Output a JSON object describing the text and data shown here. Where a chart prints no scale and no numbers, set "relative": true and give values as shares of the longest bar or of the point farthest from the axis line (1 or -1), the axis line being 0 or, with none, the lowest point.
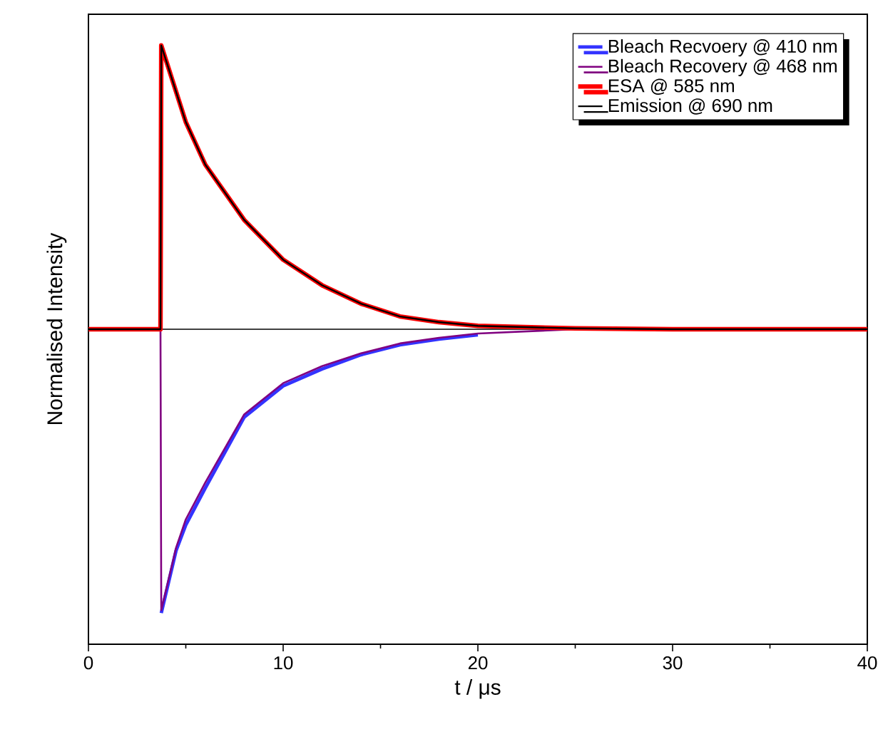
{
  "chart_data": {
    "type": "line",
    "xlabel": "t / μs",
    "ylabel": "Normalised Intensity",
    "relative": true,
    "xlim": [
      0,
      40
    ],
    "xticks": [
      0,
      10,
      20,
      30,
      40
    ],
    "tick_labels": "x",
    "legend": "top right",
    "marker": "none",
    "line_style": "solid",
    "series": [
      {
        "name": "Bleach Recvoery @ 410 nm",
        "color": "#3333ff",
        "x": [
          3.74,
          4.5,
          5,
          6,
          8,
          10,
          12,
          14,
          16,
          18,
          20
        ],
        "values": [
          -1.0,
          -0.78,
          -0.69,
          -0.56,
          -0.31,
          -0.2,
          -0.14,
          -0.09,
          -0.055,
          -0.035,
          -0.02
        ]
      },
      {
        "name": "Bleach Recovery @ 468 nm",
        "color": "#800080",
        "x": [
          0,
          3.7,
          3.74,
          4.5,
          5,
          6,
          8,
          10,
          12,
          14,
          16,
          18,
          20,
          25,
          30,
          40
        ],
        "values": [
          0,
          0,
          -0.99,
          -0.77,
          -0.67,
          -0.54,
          -0.3,
          -0.19,
          -0.13,
          -0.085,
          -0.05,
          -0.03,
          -0.015,
          0,
          0,
          0
        ]
      },
      {
        "name": "ESA @ 585 nm",
        "color": "#ff0000",
        "x": [
          0,
          3.7,
          3.74,
          5,
          6,
          8,
          10,
          12,
          14,
          16,
          18,
          20,
          25,
          30,
          40
        ],
        "values": [
          0,
          0,
          1.0,
          0.73,
          0.58,
          0.385,
          0.245,
          0.155,
          0.09,
          0.045,
          0.025,
          0.012,
          0.003,
          0,
          0
        ]
      },
      {
        "name": "Emission @ 690 nm",
        "color": "#000000",
        "x": [
          0,
          3.7,
          3.74,
          5,
          6,
          8,
          10,
          12,
          14,
          16,
          18,
          20,
          25,
          30,
          40
        ],
        "values": [
          0,
          0,
          1.0,
          0.73,
          0.58,
          0.385,
          0.245,
          0.155,
          0.09,
          0.045,
          0.025,
          0.012,
          0.003,
          0,
          0
        ]
      }
    ]
  }
}
